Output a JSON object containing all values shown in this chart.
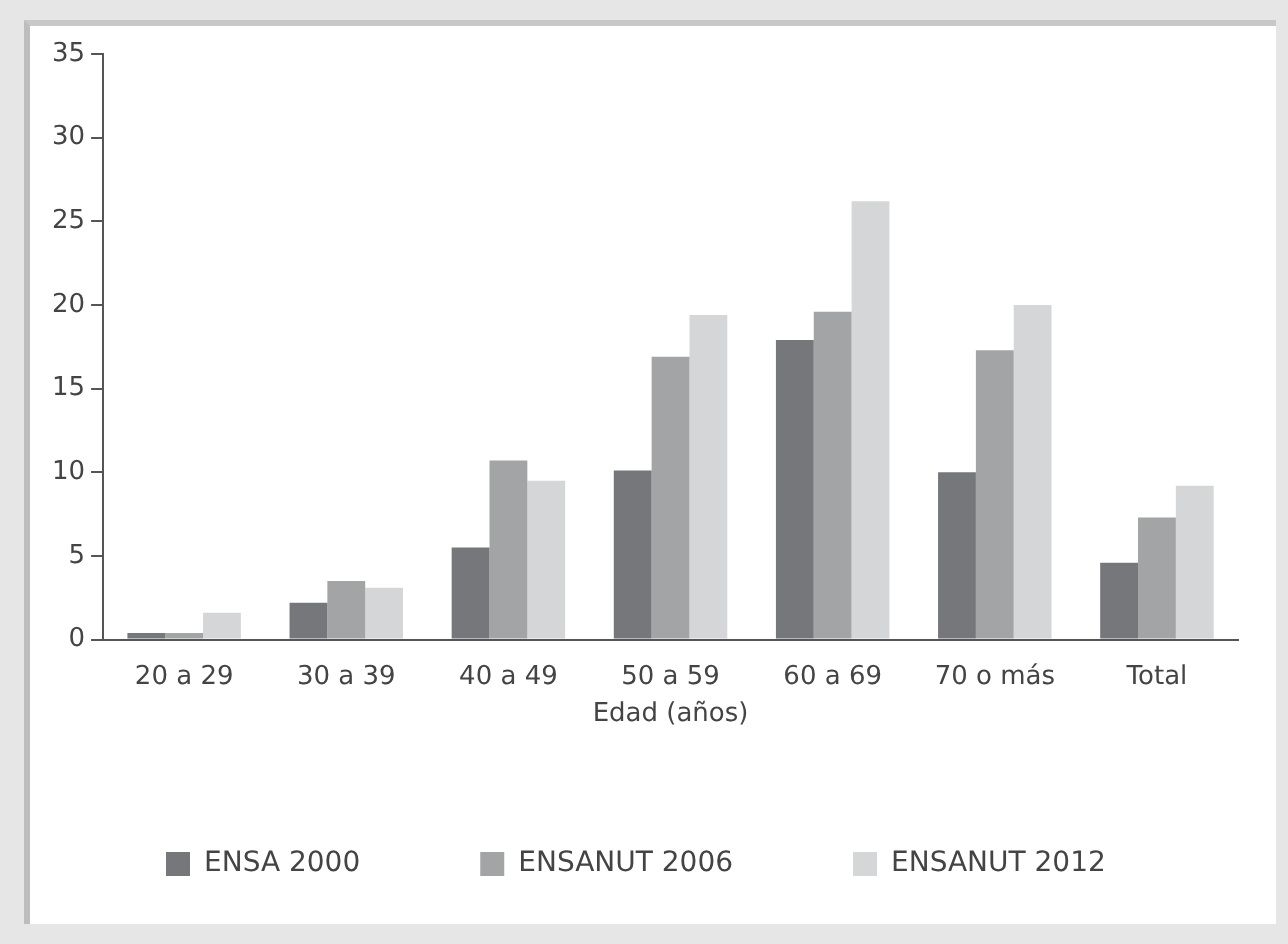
{
  "chart_data": {
    "type": "bar",
    "xlabel": "Edad (años)",
    "categories": [
      "20 a 29",
      "30 a 39",
      "40 a 49",
      "50 a 59",
      "60 a 69",
      "70 o más",
      "Total"
    ],
    "series": [
      {
        "name": "ENSA 2000",
        "color": "#75777a",
        "values": [
          0.4,
          2.2,
          5.5,
          10.1,
          17.9,
          10.0,
          4.6
        ]
      },
      {
        "name": "ENSANUT 2006",
        "color": "#a2a4a6",
        "values": [
          0.4,
          3.5,
          10.7,
          16.9,
          19.6,
          17.3,
          7.3
        ]
      },
      {
        "name": "ENSANUT 2012",
        "color": "#d4d6d8",
        "values": [
          1.6,
          3.1,
          9.5,
          19.4,
          26.2,
          20.0,
          9.2
        ]
      }
    ],
    "ylim": [
      0,
      35
    ],
    "yticks": [
      0,
      5,
      10,
      15,
      20,
      25,
      30,
      35
    ],
    "grid": false,
    "legend": "bottom"
  }
}
